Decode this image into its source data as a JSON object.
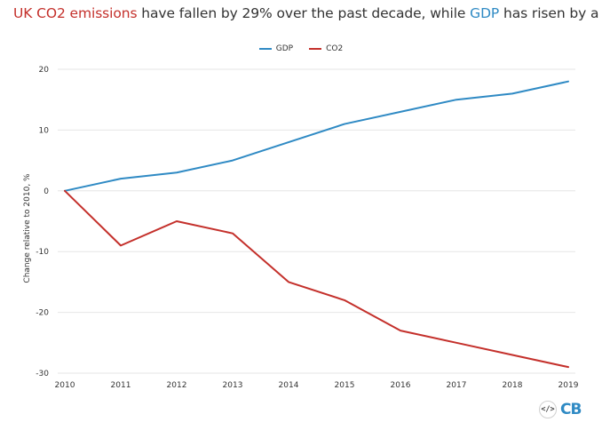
{
  "title": {
    "part1": "UK CO2 emissions",
    "part2": " have fallen by 29% over the past decade, while ",
    "part3": "GDP",
    "part4": " has risen by a fifth"
  },
  "logo": {
    "code_symbol": "</>",
    "brand": "CB"
  },
  "colors": {
    "gdp": "#2f8ac4",
    "co2": "#c4302b",
    "grid": "#e6e6e6",
    "text": "#333333"
  },
  "chart_data": {
    "type": "line",
    "x": [
      "2010",
      "2011",
      "2012",
      "2013",
      "2014",
      "2015",
      "2016",
      "2017",
      "2018",
      "2019"
    ],
    "ylabel": "Change relative to 2010, %",
    "xlabel": "",
    "ylim": [
      -30,
      20
    ],
    "yticks": [
      -30,
      -20,
      -10,
      0,
      10,
      20
    ],
    "grid": true,
    "legend_position": "top-center",
    "series": [
      {
        "name": "GDP",
        "color": "#2f8ac4",
        "values": [
          0,
          2,
          3,
          5,
          8,
          11,
          13,
          15,
          16,
          18
        ]
      },
      {
        "name": "CO2",
        "color": "#c4302b",
        "values": [
          0,
          -9,
          -5,
          -7,
          -15,
          -18,
          -23,
          -25,
          -27,
          -29
        ]
      }
    ]
  }
}
